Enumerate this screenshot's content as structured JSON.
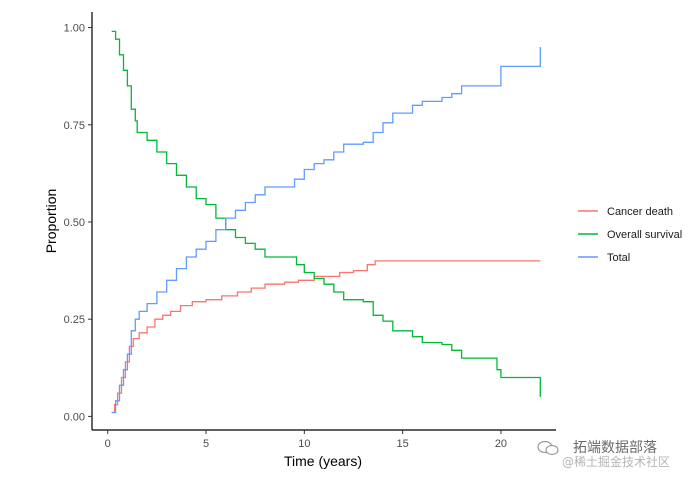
{
  "chart_data": {
    "type": "line",
    "xlabel": "Time (years)",
    "ylabel": "Proportion",
    "xlim": [
      -0.8,
      22.8
    ],
    "ylim": [
      -0.035,
      1.04
    ],
    "x_ticks": [
      0,
      5,
      10,
      15,
      20
    ],
    "x_tick_labels": [
      "0",
      "5",
      "10",
      "15",
      "20"
    ],
    "y_ticks": [
      0,
      0.25,
      0.5,
      0.75,
      1.0
    ],
    "y_tick_labels": [
      "0.00",
      "0.25",
      "0.50",
      "0.75",
      "1.00"
    ],
    "grid": false,
    "legend_position": "right",
    "series": [
      {
        "name": "Cancer death",
        "color": "#F8766D",
        "points": [
          [
            0.2,
            0.01
          ],
          [
            0.35,
            0.03
          ],
          [
            0.5,
            0.06
          ],
          [
            0.7,
            0.1
          ],
          [
            0.9,
            0.14
          ],
          [
            1.1,
            0.18
          ],
          [
            1.3,
            0.2
          ],
          [
            1.6,
            0.215
          ],
          [
            2.0,
            0.23
          ],
          [
            2.4,
            0.25
          ],
          [
            2.8,
            0.26
          ],
          [
            3.2,
            0.27
          ],
          [
            3.7,
            0.285
          ],
          [
            4.3,
            0.295
          ],
          [
            5.0,
            0.3
          ],
          [
            5.8,
            0.31
          ],
          [
            6.6,
            0.32
          ],
          [
            7.3,
            0.33
          ],
          [
            8.0,
            0.34
          ],
          [
            9.0,
            0.345
          ],
          [
            9.7,
            0.35
          ],
          [
            10.5,
            0.36
          ],
          [
            11.0,
            0.36
          ],
          [
            11.8,
            0.37
          ],
          [
            12.5,
            0.375
          ],
          [
            13.2,
            0.39
          ],
          [
            13.6,
            0.4
          ],
          [
            22.0,
            0.4
          ]
        ]
      },
      {
        "name": "Overall survival",
        "color": "#00BA38",
        "points": [
          [
            0.2,
            0.99
          ],
          [
            0.4,
            0.97
          ],
          [
            0.6,
            0.93
          ],
          [
            0.8,
            0.89
          ],
          [
            1.0,
            0.85
          ],
          [
            1.2,
            0.79
          ],
          [
            1.4,
            0.76
          ],
          [
            1.5,
            0.73
          ],
          [
            2.0,
            0.71
          ],
          [
            2.5,
            0.68
          ],
          [
            3.0,
            0.65
          ],
          [
            3.5,
            0.62
          ],
          [
            4.0,
            0.59
          ],
          [
            4.5,
            0.56
          ],
          [
            5.0,
            0.545
          ],
          [
            5.5,
            0.51
          ],
          [
            6.0,
            0.48
          ],
          [
            6.5,
            0.46
          ],
          [
            7.0,
            0.445
          ],
          [
            7.5,
            0.43
          ],
          [
            8.0,
            0.41
          ],
          [
            9.0,
            0.41
          ],
          [
            9.6,
            0.39
          ],
          [
            10.0,
            0.37
          ],
          [
            10.5,
            0.355
          ],
          [
            11.0,
            0.34
          ],
          [
            11.5,
            0.32
          ],
          [
            12.0,
            0.3
          ],
          [
            13.0,
            0.295
          ],
          [
            13.5,
            0.26
          ],
          [
            14.0,
            0.245
          ],
          [
            14.5,
            0.22
          ],
          [
            15.5,
            0.205
          ],
          [
            16.0,
            0.19
          ],
          [
            17.0,
            0.185
          ],
          [
            17.5,
            0.17
          ],
          [
            18.0,
            0.15
          ],
          [
            19.5,
            0.15
          ],
          [
            19.8,
            0.12
          ],
          [
            20.0,
            0.1
          ],
          [
            22.0,
            0.1
          ],
          [
            22.0,
            0.05
          ]
        ]
      },
      {
        "name": "Total",
        "color": "#619CFF",
        "points": [
          [
            0.2,
            0.01
          ],
          [
            0.4,
            0.04
          ],
          [
            0.6,
            0.08
          ],
          [
            0.8,
            0.12
          ],
          [
            1.0,
            0.16
          ],
          [
            1.2,
            0.22
          ],
          [
            1.4,
            0.25
          ],
          [
            1.6,
            0.27
          ],
          [
            2.0,
            0.29
          ],
          [
            2.5,
            0.32
          ],
          [
            3.0,
            0.35
          ],
          [
            3.5,
            0.38
          ],
          [
            4.0,
            0.41
          ],
          [
            4.5,
            0.43
          ],
          [
            5.0,
            0.45
          ],
          [
            5.5,
            0.48
          ],
          [
            6.0,
            0.51
          ],
          [
            6.5,
            0.53
          ],
          [
            7.0,
            0.55
          ],
          [
            7.5,
            0.57
          ],
          [
            8.0,
            0.59
          ],
          [
            9.0,
            0.59
          ],
          [
            9.5,
            0.61
          ],
          [
            10.0,
            0.635
          ],
          [
            10.5,
            0.65
          ],
          [
            11.0,
            0.66
          ],
          [
            11.5,
            0.68
          ],
          [
            12.0,
            0.7
          ],
          [
            13.0,
            0.705
          ],
          [
            13.5,
            0.73
          ],
          [
            14.0,
            0.755
          ],
          [
            14.5,
            0.78
          ],
          [
            15.5,
            0.8
          ],
          [
            16.0,
            0.81
          ],
          [
            17.0,
            0.82
          ],
          [
            17.5,
            0.83
          ],
          [
            18.0,
            0.85
          ],
          [
            19.5,
            0.85
          ],
          [
            20.0,
            0.9
          ],
          [
            22.0,
            0.9
          ],
          [
            22.0,
            0.95
          ]
        ]
      }
    ]
  },
  "watermark": {
    "title": "拓端数据部落",
    "subtitle": "@稀土掘金技术社区",
    "icon": "wechat-icon"
  }
}
